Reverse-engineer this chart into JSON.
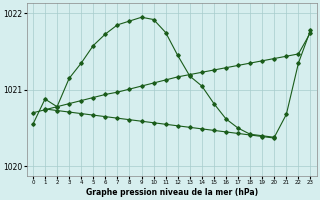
{
  "title": "Graphe pression niveau de la mer (hPa)",
  "bg_color": "#d6eeee",
  "grid_color": "#a8cccc",
  "line_color": "#1a5c1a",
  "ylim": [
    1019.87,
    1022.13
  ],
  "yticks": [
    1020,
    1021,
    1022
  ],
  "xlim": [
    -0.5,
    23.5
  ],
  "xticks": [
    0,
    1,
    2,
    3,
    4,
    5,
    6,
    7,
    8,
    9,
    10,
    11,
    12,
    13,
    14,
    15,
    16,
    17,
    18,
    19,
    20,
    21,
    22,
    23
  ],
  "line1_x": [
    0,
    1,
    2,
    3,
    4,
    5,
    6,
    7,
    8,
    9,
    10,
    11,
    12,
    13,
    14,
    15,
    16,
    17,
    18,
    19,
    20,
    21,
    22,
    23
  ],
  "line1_y": [
    1020.55,
    1020.88,
    1020.78,
    1021.15,
    1021.35,
    1021.58,
    1021.73,
    1021.85,
    1021.9,
    1021.95,
    1021.92,
    1021.75,
    1021.45,
    1021.18,
    1021.05,
    1020.82,
    1020.62,
    1020.5,
    1020.42,
    1020.4,
    1020.38,
    1020.68,
    1021.35,
    1021.78
  ],
  "line2_x": [
    0,
    1,
    2,
    3,
    4,
    5,
    6,
    7,
    8,
    9,
    10,
    11,
    12,
    13,
    14,
    15,
    16,
    17,
    18,
    19,
    20,
    21,
    22,
    23
  ],
  "line2_y": [
    1020.7,
    1020.74,
    1020.78,
    1020.82,
    1020.86,
    1020.9,
    1020.94,
    1020.97,
    1021.01,
    1021.05,
    1021.09,
    1021.13,
    1021.17,
    1021.2,
    1021.23,
    1021.26,
    1021.29,
    1021.32,
    1021.35,
    1021.38,
    1021.41,
    1021.44,
    1021.47,
    1021.75
  ],
  "line3_x": [
    1,
    2,
    3,
    4,
    5,
    6,
    7,
    8,
    9,
    10,
    11,
    12,
    13,
    14,
    15,
    16,
    17,
    18,
    19,
    20
  ],
  "line3_y": [
    1020.75,
    1020.73,
    1020.71,
    1020.69,
    1020.67,
    1020.65,
    1020.63,
    1020.61,
    1020.59,
    1020.57,
    1020.55,
    1020.53,
    1020.51,
    1020.49,
    1020.47,
    1020.45,
    1020.43,
    1020.41,
    1020.39,
    1020.37
  ]
}
